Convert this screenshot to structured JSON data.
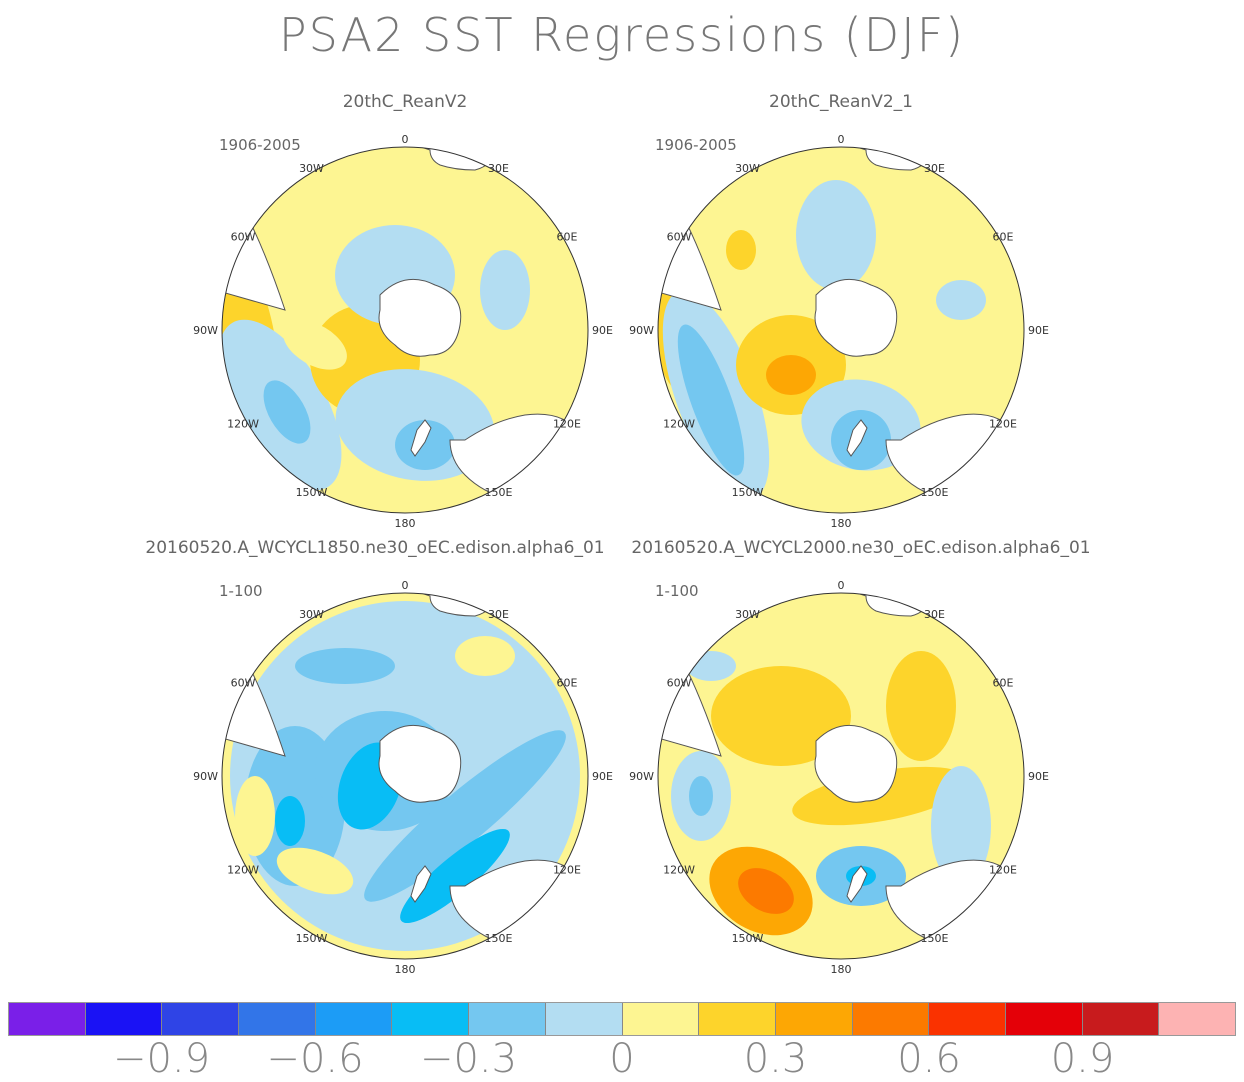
{
  "chart_data": {
    "type": "map",
    "title": "PSA2 SST Regressions (DJF)",
    "projection": "south-polar-stereographic",
    "panels": [
      {
        "name": "20thC_ReanV2",
        "period": "1906-2005"
      },
      {
        "name": "20thC_ReanV2_1",
        "period": "1906-2005"
      },
      {
        "name": "20160520.A_WCYCL1850.ne30_oEC.edison.alpha6_01",
        "period": "1-100"
      },
      {
        "name": "20160520.A_WCYCL2000.ne30_oEC.edison.alpha6_01",
        "period": "1-100"
      }
    ],
    "longitude_labels": [
      "0",
      "30E",
      "60E",
      "90E",
      "120E",
      "150E",
      "180",
      "150W",
      "120W",
      "90W",
      "60W",
      "30W"
    ],
    "colorbar": {
      "colors": [
        "#7a1fe8",
        "#1a12f5",
        "#2f44e6",
        "#3275e8",
        "#1c9cf6",
        "#08bdf5",
        "#74c7f0",
        "#b3ddf2",
        "#fdf592",
        "#fdd42b",
        "#fda704",
        "#fc7a00",
        "#fa3200",
        "#e40008",
        "#c81b1d",
        "#fdb3b3"
      ],
      "tick_labels": [
        "−0.9",
        "−0.6",
        "−0.3",
        "0",
        "0.3",
        "0.6",
        "0.9"
      ]
    }
  }
}
